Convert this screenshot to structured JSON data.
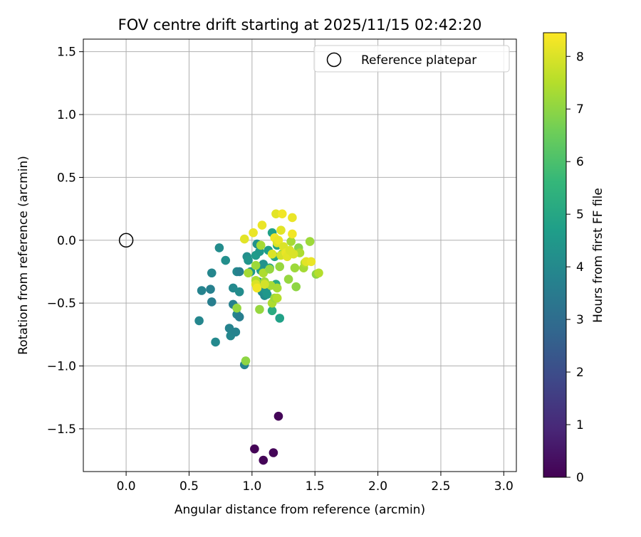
{
  "chart_data": {
    "type": "scatter",
    "title": "FOV centre drift starting at 2025/11/15 02:42:20",
    "xlabel": "Angular distance from reference (arcmin)",
    "ylabel": "Rotation from reference (arcmin)",
    "xlim": [
      -0.34,
      3.1
    ],
    "ylim": [
      -1.84,
      1.6
    ],
    "xticks": [
      0.0,
      0.5,
      1.0,
      1.5,
      2.0,
      2.5,
      3.0
    ],
    "xtick_labels": [
      "0.0",
      "0.5",
      "1.0",
      "1.5",
      "2.0",
      "2.5",
      "3.0"
    ],
    "yticks": [
      1.5,
      1.0,
      0.5,
      0.0,
      -0.5,
      -1.0,
      -1.5
    ],
    "ytick_labels": [
      "1.5",
      "1.0",
      "0.5",
      "0.0",
      "−0.5",
      "−1.0",
      "−1.5"
    ],
    "grid": true,
    "legend": {
      "position": "top-right",
      "entries": [
        {
          "label": "Reference platepar",
          "marker": "open-circle"
        }
      ]
    },
    "reference_point": {
      "x": 0.0,
      "y": 0.0
    },
    "colorbar": {
      "label": "Hours from first FF file",
      "range": [
        0,
        8.45
      ],
      "ticks": [
        0,
        1,
        2,
        3,
        4,
        5,
        6,
        7,
        8
      ],
      "tick_labels": [
        "0",
        "1",
        "2",
        "3",
        "4",
        "5",
        "6",
        "7",
        "8"
      ],
      "colormap": "viridis",
      "stops": [
        "#440154",
        "#482878",
        "#3e4989",
        "#31688e",
        "#26828e",
        "#1f9e89",
        "#35b779",
        "#6ece58",
        "#b5de2b",
        "#fde725"
      ]
    },
    "points": [
      {
        "x": 1.21,
        "y": -1.4,
        "t": 0.1
      },
      {
        "x": 1.02,
        "y": -1.66,
        "t": 0.05
      },
      {
        "x": 1.09,
        "y": -1.75,
        "t": 0.08
      },
      {
        "x": 1.17,
        "y": -1.69,
        "t": 0.12
      },
      {
        "x": 0.58,
        "y": -0.64,
        "t": 3.9
      },
      {
        "x": 0.6,
        "y": -0.4,
        "t": 3.8
      },
      {
        "x": 0.67,
        "y": -0.39,
        "t": 3.7
      },
      {
        "x": 0.68,
        "y": -0.26,
        "t": 3.9
      },
      {
        "x": 0.68,
        "y": -0.49,
        "t": 3.6
      },
      {
        "x": 0.71,
        "y": -0.81,
        "t": 4.0
      },
      {
        "x": 0.74,
        "y": -0.06,
        "t": 4.1
      },
      {
        "x": 0.79,
        "y": -0.16,
        "t": 4.2
      },
      {
        "x": 0.82,
        "y": -0.7,
        "t": 3.8
      },
      {
        "x": 0.83,
        "y": -0.76,
        "t": 3.9
      },
      {
        "x": 0.85,
        "y": -0.38,
        "t": 4.0
      },
      {
        "x": 0.85,
        "y": -0.51,
        "t": 3.7
      },
      {
        "x": 0.87,
        "y": -0.73,
        "t": 3.8
      },
      {
        "x": 0.88,
        "y": -0.59,
        "t": 3.9
      },
      {
        "x": 0.88,
        "y": -0.25,
        "t": 4.0
      },
      {
        "x": 0.9,
        "y": -0.41,
        "t": 4.1
      },
      {
        "x": 0.9,
        "y": -0.61,
        "t": 3.6
      },
      {
        "x": 0.9,
        "y": -0.25,
        "t": 3.7
      },
      {
        "x": 0.94,
        "y": -0.99,
        "t": 3.8
      },
      {
        "x": 0.96,
        "y": -0.13,
        "t": 4.2
      },
      {
        "x": 0.97,
        "y": -0.16,
        "t": 4.4
      },
      {
        "x": 0.99,
        "y": -0.25,
        "t": 4.5
      },
      {
        "x": 1.03,
        "y": -0.12,
        "t": 4.6
      },
      {
        "x": 1.04,
        "y": -0.03,
        "t": 4.3
      },
      {
        "x": 1.05,
        "y": -0.33,
        "t": 4.4
      },
      {
        "x": 1.06,
        "y": -0.09,
        "t": 4.5
      },
      {
        "x": 1.07,
        "y": -0.24,
        "t": 4.6
      },
      {
        "x": 1.08,
        "y": -0.41,
        "t": 4.2
      },
      {
        "x": 1.09,
        "y": -0.19,
        "t": 4.3
      },
      {
        "x": 1.1,
        "y": -0.44,
        "t": 4.1
      },
      {
        "x": 1.11,
        "y": -0.4,
        "t": 4.4
      },
      {
        "x": 1.12,
        "y": -0.43,
        "t": 4.5
      },
      {
        "x": 1.13,
        "y": -0.08,
        "t": 4.7
      },
      {
        "x": 1.14,
        "y": -0.22,
        "t": 4.9
      },
      {
        "x": 1.16,
        "y": 0.06,
        "t": 4.8
      },
      {
        "x": 1.16,
        "y": -0.56,
        "t": 5.2
      },
      {
        "x": 1.18,
        "y": -0.13,
        "t": 5.0
      },
      {
        "x": 1.19,
        "y": -0.35,
        "t": 5.1
      },
      {
        "x": 1.2,
        "y": -0.04,
        "t": 4.9
      },
      {
        "x": 1.22,
        "y": -0.62,
        "t": 4.8
      },
      {
        "x": 1.24,
        "y": -0.11,
        "t": 5.0
      },
      {
        "x": 0.88,
        "y": -0.54,
        "t": 7.1
      },
      {
        "x": 0.95,
        "y": -0.96,
        "t": 7.0
      },
      {
        "x": 0.97,
        "y": -0.26,
        "t": 7.3
      },
      {
        "x": 1.03,
        "y": -0.2,
        "t": 7.2
      },
      {
        "x": 1.03,
        "y": -0.32,
        "t": 7.4
      },
      {
        "x": 1.06,
        "y": -0.55,
        "t": 7.1
      },
      {
        "x": 1.07,
        "y": -0.04,
        "t": 7.3
      },
      {
        "x": 1.09,
        "y": -0.26,
        "t": 7.4
      },
      {
        "x": 1.1,
        "y": -0.33,
        "t": 7.2
      },
      {
        "x": 1.14,
        "y": -0.23,
        "t": 7.1
      },
      {
        "x": 1.15,
        "y": -0.36,
        "t": 7.3
      },
      {
        "x": 1.16,
        "y": -0.5,
        "t": 7.4
      },
      {
        "x": 1.18,
        "y": -0.46,
        "t": 7.2
      },
      {
        "x": 1.2,
        "y": -0.46,
        "t": 7.5
      },
      {
        "x": 1.2,
        "y": -0.38,
        "t": 7.3
      },
      {
        "x": 1.22,
        "y": -0.21,
        "t": 7.1
      },
      {
        "x": 1.26,
        "y": -0.08,
        "t": 7.4
      },
      {
        "x": 1.29,
        "y": -0.31,
        "t": 7.1
      },
      {
        "x": 1.31,
        "y": -0.01,
        "t": 7.3
      },
      {
        "x": 1.34,
        "y": -0.22,
        "t": 7.2
      },
      {
        "x": 1.35,
        "y": -0.37,
        "t": 7.0
      },
      {
        "x": 1.37,
        "y": -0.06,
        "t": 6.9
      },
      {
        "x": 1.38,
        "y": -0.1,
        "t": 7.4
      },
      {
        "x": 1.41,
        "y": -0.22,
        "t": 7.3
      },
      {
        "x": 1.42,
        "y": -0.18,
        "t": 7.5
      },
      {
        "x": 1.46,
        "y": -0.01,
        "t": 7.2
      },
      {
        "x": 1.51,
        "y": -0.27,
        "t": 7.0
      },
      {
        "x": 1.53,
        "y": -0.26,
        "t": 7.5
      },
      {
        "x": 0.94,
        "y": 0.01,
        "t": 8.1
      },
      {
        "x": 1.01,
        "y": 0.06,
        "t": 8.2
      },
      {
        "x": 1.03,
        "y": -0.35,
        "t": 8.0
      },
      {
        "x": 1.04,
        "y": -0.38,
        "t": 8.3
      },
      {
        "x": 1.08,
        "y": 0.12,
        "t": 8.2
      },
      {
        "x": 1.1,
        "y": -0.35,
        "t": 7.9
      },
      {
        "x": 1.16,
        "y": -0.11,
        "t": 8.0
      },
      {
        "x": 1.18,
        "y": 0.02,
        "t": 8.3
      },
      {
        "x": 1.19,
        "y": 0.21,
        "t": 8.1
      },
      {
        "x": 1.2,
        "y": -0.02,
        "t": 8.0
      },
      {
        "x": 1.21,
        "y": 0.0,
        "t": 8.2
      },
      {
        "x": 1.23,
        "y": -0.12,
        "t": 7.9
      },
      {
        "x": 1.23,
        "y": 0.08,
        "t": 8.1
      },
      {
        "x": 1.24,
        "y": 0.21,
        "t": 8.3
      },
      {
        "x": 1.25,
        "y": -0.05,
        "t": 8.0
      },
      {
        "x": 1.27,
        "y": -0.1,
        "t": 8.2
      },
      {
        "x": 1.28,
        "y": -0.13,
        "t": 8.1
      },
      {
        "x": 1.3,
        "y": -0.08,
        "t": 8.0
      },
      {
        "x": 1.32,
        "y": 0.18,
        "t": 8.2
      },
      {
        "x": 1.32,
        "y": 0.05,
        "t": 8.3
      },
      {
        "x": 1.33,
        "y": -0.11,
        "t": 8.0
      },
      {
        "x": 1.43,
        "y": -0.17,
        "t": 8.1
      },
      {
        "x": 1.47,
        "y": -0.17,
        "t": 8.2
      }
    ]
  }
}
